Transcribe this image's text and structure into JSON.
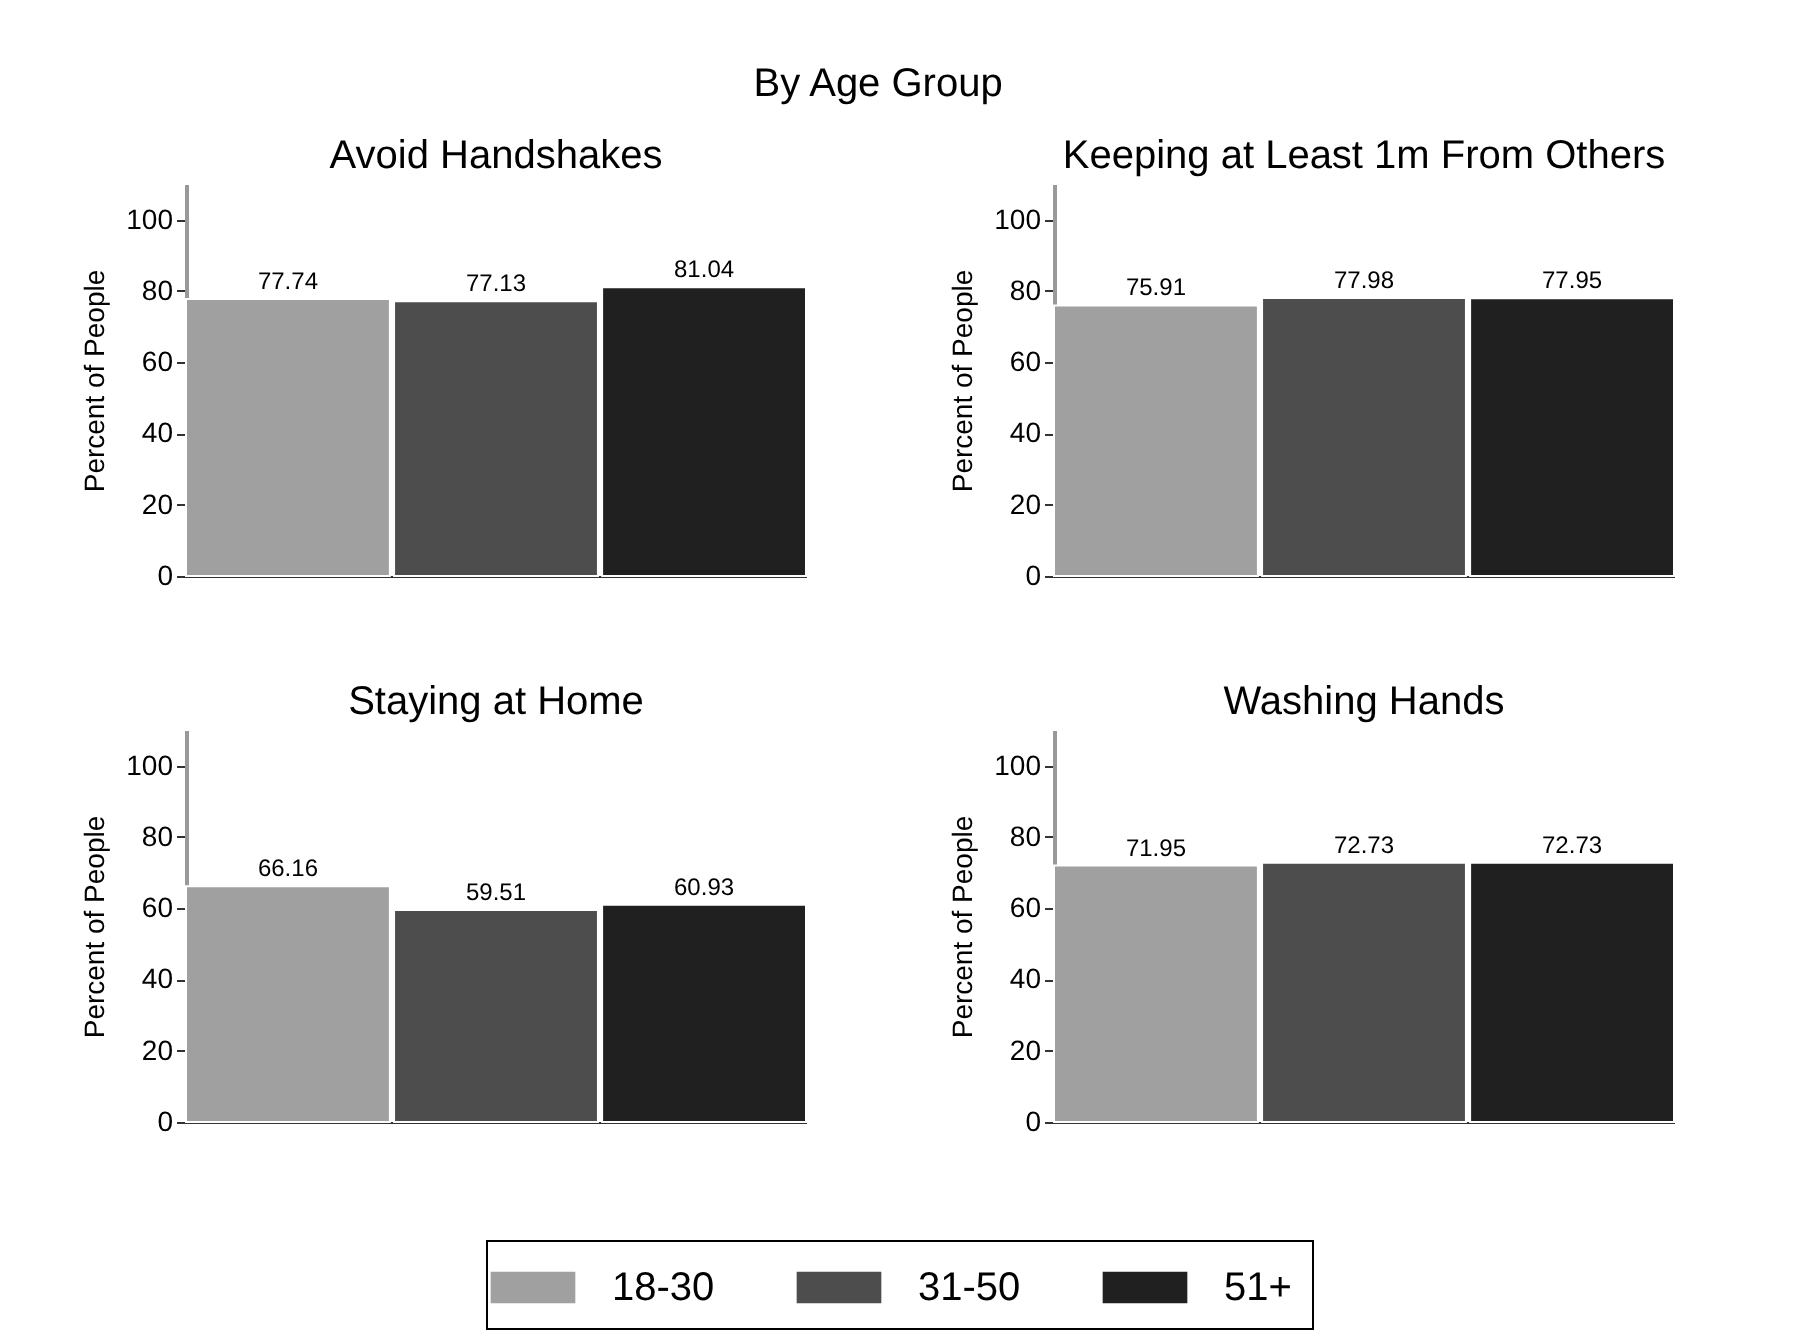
{
  "chart_data": [
    {
      "type": "bar",
      "title": "Avoid Handshakes",
      "annotations": [
        "By Age Group"
      ],
      "ylabel": "Percent of People",
      "categories": [
        null
      ],
      "series": [
        {
          "name": "18-30",
          "color": "#a0a0a0",
          "values": [
            77.74
          ]
        },
        {
          "name": "31-50",
          "color": "#4d4d4d",
          "values": [
            77.13
          ]
        },
        {
          "name": "51+",
          "color": "#202020",
          "values": [
            81.04
          ]
        }
      ],
      "ylim": [
        0,
        110
      ],
      "yticks": [
        0,
        20,
        40,
        60,
        80,
        100
      ],
      "data_labels": true,
      "legend": "bottom",
      "tick_labels": "y"
    },
    {
      "type": "bar",
      "title": "Keeping at Least 1m From Others",
      "ylabel": "Percent of People",
      "categories": [
        null
      ],
      "series": [
        {
          "name": "18-30",
          "color": "#a0a0a0",
          "values": [
            75.91
          ]
        },
        {
          "name": "31-50",
          "color": "#4d4d4d",
          "values": [
            77.98
          ]
        },
        {
          "name": "51+",
          "color": "#202020",
          "values": [
            77.95
          ]
        }
      ],
      "ylim": [
        0,
        110
      ],
      "yticks": [
        0,
        20,
        40,
        60,
        80,
        100
      ],
      "data_labels": true,
      "legend": "bottom",
      "tick_labels": "y"
    },
    {
      "type": "bar",
      "title": "Staying at Home",
      "ylabel": "Percent of People",
      "categories": [
        null
      ],
      "series": [
        {
          "name": "18-30",
          "color": "#a0a0a0",
          "values": [
            66.16
          ]
        },
        {
          "name": "31-50",
          "color": "#4d4d4d",
          "values": [
            59.51
          ]
        },
        {
          "name": "51+",
          "color": "#202020",
          "values": [
            60.93
          ]
        }
      ],
      "ylim": [
        0,
        110
      ],
      "yticks": [
        0,
        20,
        40,
        60,
        80,
        100
      ],
      "data_labels": true,
      "legend": "bottom",
      "tick_labels": "y"
    },
    {
      "type": "bar",
      "title": "Washing Hands",
      "ylabel": "Percent of People",
      "categories": [
        null
      ],
      "series": [
        {
          "name": "18-30",
          "color": "#a0a0a0",
          "values": [
            71.95
          ]
        },
        {
          "name": "31-50",
          "color": "#4d4d4d",
          "values": [
            72.73
          ]
        },
        {
          "name": "51+",
          "color": "#202020",
          "values": [
            72.73
          ]
        }
      ],
      "ylim": [
        0,
        110
      ],
      "yticks": [
        0,
        20,
        40,
        60,
        80,
        100
      ],
      "data_labels": true,
      "legend": "bottom",
      "tick_labels": "y"
    }
  ]
}
